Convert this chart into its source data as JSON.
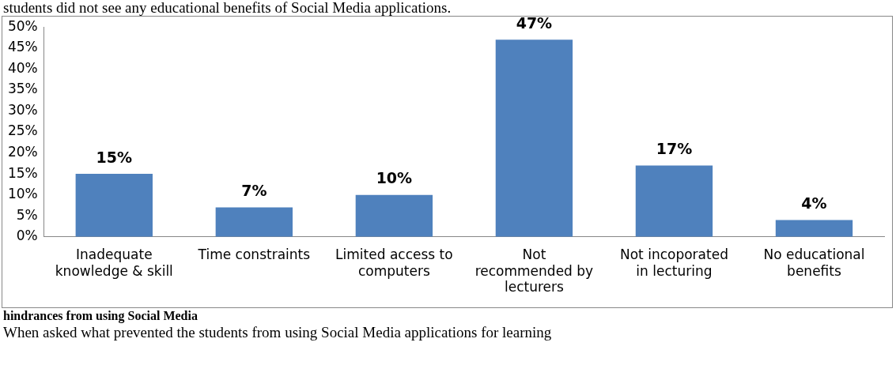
{
  "chart_data": {
    "type": "bar",
    "categories": [
      "Inadequate knowledge & skill",
      "Time constraints",
      "Limited access to computers",
      "Not recommended by lecturers",
      "Not incoporated in lecturing",
      "No educational benefits"
    ],
    "values": [
      15,
      7,
      10,
      47,
      17,
      4
    ],
    "value_labels": [
      "15%",
      "7%",
      "10%",
      "47%",
      "17%",
      "4%"
    ],
    "color": "#4f81bd",
    "ylim": [
      0,
      50
    ],
    "yticks": [
      {
        "value": 0,
        "label": "0%"
      },
      {
        "value": 5,
        "label": "5%"
      },
      {
        "value": 10,
        "label": "10%"
      },
      {
        "value": 15,
        "label": "15%"
      },
      {
        "value": 20,
        "label": "20%"
      },
      {
        "value": 25,
        "label": "25%"
      },
      {
        "value": 30,
        "label": "30%"
      },
      {
        "value": 35,
        "label": "35%"
      },
      {
        "value": 40,
        "label": "40%"
      },
      {
        "value": 45,
        "label": "45%"
      },
      {
        "value": 50,
        "label": "50%"
      }
    ],
    "grid": false,
    "legend": false,
    "annotations": [
      "students did not see any educational benefits of Social Media applications.",
      "hindrances from using Social Media",
      "When asked what prevented the students from using Social Media applications for learning"
    ]
  }
}
